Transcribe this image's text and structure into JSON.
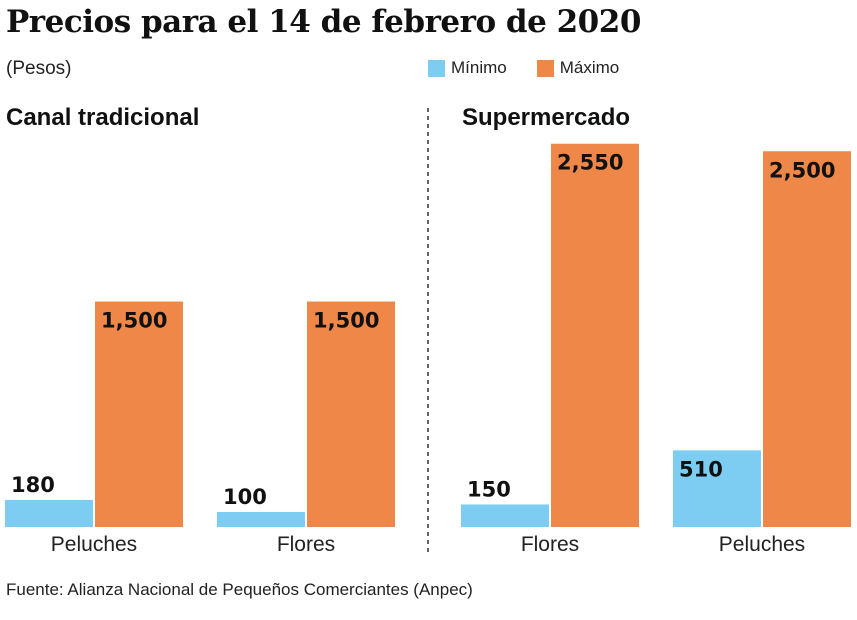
{
  "title": "Precios para el 14 de febrero de 2020",
  "unit": "(Pesos)",
  "source": "Fuente: Alianza Nacional de Pequeños Comerciantes (Anpec)",
  "colors": {
    "min": "#7dcdf2",
    "max": "#ef8748",
    "divider": "#333333"
  },
  "chart_data": {
    "type": "bar",
    "legend": [
      {
        "name": "Mínimo",
        "color": "#7dcdf2"
      },
      {
        "name": "Máximo",
        "color": "#ef8748"
      }
    ],
    "ylim": [
      0,
      2600
    ],
    "panels": [
      {
        "title": "Canal tradicional",
        "categories": [
          "Peluches",
          "Flores"
        ],
        "series": [
          {
            "name": "Mínimo",
            "values": [
              180,
              100
            ],
            "labels": [
              "180",
              "100"
            ]
          },
          {
            "name": "Máximo",
            "values": [
              1500,
              1500
            ],
            "labels": [
              "1,500",
              "1,500"
            ]
          }
        ]
      },
      {
        "title": "Supermercado",
        "categories": [
          "Flores",
          "Peluches"
        ],
        "series": [
          {
            "name": "Mínimo",
            "values": [
              150,
              510
            ],
            "labels": [
              "150",
              "510"
            ]
          },
          {
            "name": "Máximo",
            "values": [
              2550,
              2500
            ],
            "labels": [
              "2,550",
              "2,500"
            ]
          }
        ]
      }
    ]
  }
}
